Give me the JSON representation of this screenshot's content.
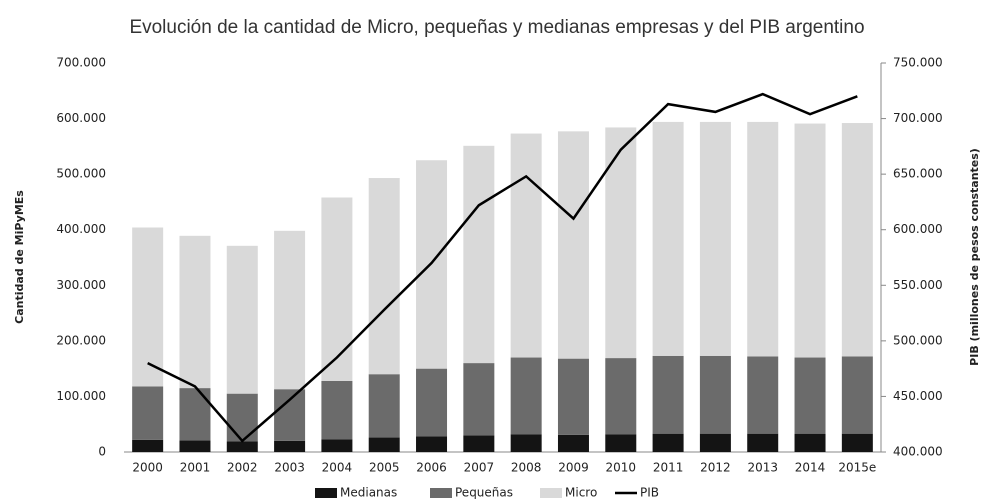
{
  "chart_data": {
    "type": "bar",
    "title": "Evolución de la cantidad de Micro, pequeñas y medianas empresas y del PIB argentino",
    "y_label": "Cantidad de MiPyMEs",
    "y2_label": "PIB (millones de pesos constantes)",
    "stacked": true,
    "categories": [
      "2000",
      "2001",
      "2002",
      "2003",
      "2004",
      "2005",
      "2006",
      "2007",
      "2008",
      "2009",
      "2010",
      "2011",
      "2012",
      "2013",
      "2014",
      "2015e"
    ],
    "series": [
      {
        "name": "Medianas",
        "color": "#141414",
        "values": [
          22000,
          21000,
          19000,
          20000,
          23000,
          26000,
          28000,
          30000,
          32000,
          31000,
          32000,
          33000,
          33000,
          33000,
          33000,
          33000
        ]
      },
      {
        "name": "Pequeñas",
        "color": "#6b6b6b",
        "values": [
          96000,
          94000,
          86000,
          93000,
          105000,
          114000,
          122000,
          130000,
          138000,
          137000,
          137000,
          140000,
          140000,
          139000,
          137000,
          139000
        ]
      },
      {
        "name": "Micro",
        "color": "#d9d9d9",
        "values": [
          286000,
          274000,
          266000,
          285000,
          330000,
          353000,
          375000,
          391000,
          403000,
          409000,
          415000,
          421000,
          421000,
          422000,
          421000,
          420000
        ]
      },
      {
        "name": "PIB",
        "type": "line",
        "axis": "y2",
        "color": "#000000",
        "values": [
          480000,
          459000,
          410000,
          447000,
          485000,
          528000,
          570000,
          622000,
          648000,
          610000,
          672000,
          713000,
          706000,
          722000,
          704000,
          720000
        ]
      }
    ],
    "ylim": [
      0,
      700000
    ],
    "yticks": [
      0,
      {
        "value": 100000,
        "label": "100.000"
      },
      {
        "value": 200000,
        "label": "200.000"
      },
      {
        "value": 300000,
        "label": "300.000"
      },
      {
        "value": 400000,
        "label": "400.000"
      },
      {
        "value": 500000,
        "label": "500.000"
      },
      {
        "value": 600000,
        "label": "600.000"
      },
      {
        "value": 700000,
        "label": "700.000"
      }
    ],
    "y2lim": [
      400000,
      750000
    ],
    "y2ticks": [
      {
        "value": 400000,
        "label": "400.000"
      },
      {
        "value": 450000,
        "label": "450.000"
      },
      {
        "value": 500000,
        "label": "500.000"
      },
      {
        "value": 550000,
        "label": "550.000"
      },
      {
        "value": 600000,
        "label": "600.000"
      },
      {
        "value": 650000,
        "label": "650.000"
      },
      {
        "value": 700000,
        "label": "700.000"
      },
      {
        "value": 750000,
        "label": "750.000"
      }
    ],
    "legend": "bottom"
  }
}
